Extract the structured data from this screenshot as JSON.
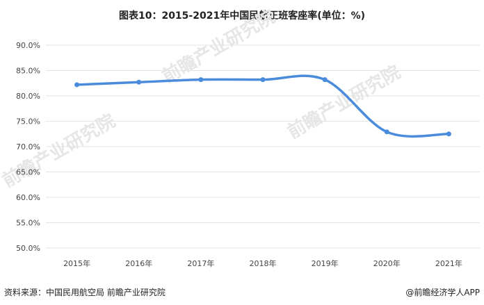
{
  "title": "图表10：2015-2021年中国民航正班客座率(单位：%)",
  "source": "资料来源：中国民用航空局 前瞻产业研究院",
  "credit": "@前瞻经济学人APP",
  "watermark": "前瞻产业研究院",
  "colors": {
    "line": "#4a8bdb",
    "grid": "#e3e3e3"
  },
  "chart_data": {
    "type": "line",
    "title": "图表10：2015-2021年中国民航正班客座率(单位：%)",
    "categories": [
      "2015年",
      "2016年",
      "2017年",
      "2018年",
      "2019年",
      "2020年",
      "2021年"
    ],
    "series": [
      {
        "values": [
          82.2,
          82.7,
          83.2,
          83.2,
          83.2,
          72.9,
          72.5
        ]
      }
    ],
    "ylim": [
      50,
      90
    ],
    "y_ticks": [
      "50.0%",
      "55.0%",
      "60.0%",
      "65.0%",
      "70.0%",
      "75.0%",
      "80.0%",
      "85.0%",
      "90.0%"
    ],
    "y_tick_values": [
      50,
      55,
      60,
      65,
      70,
      75,
      80,
      85,
      90
    ],
    "grid": true,
    "smooth": true,
    "legend": "none"
  }
}
